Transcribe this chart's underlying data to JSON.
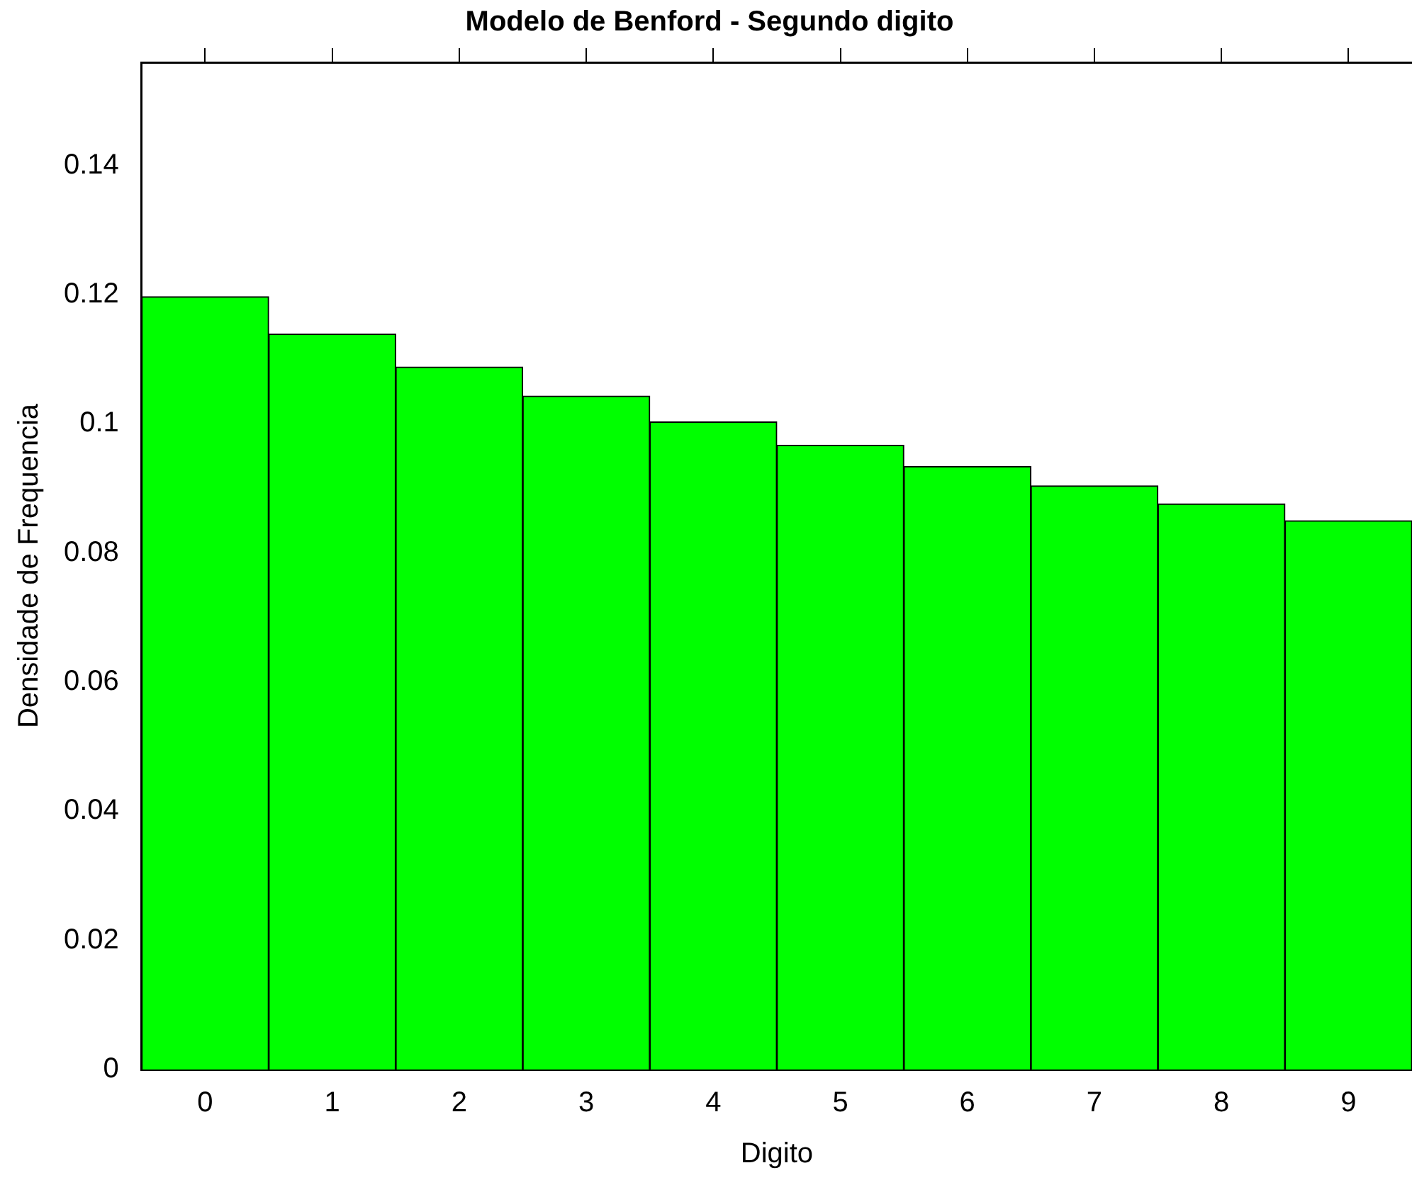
{
  "chart_data": {
    "type": "bar",
    "title": "Modelo de Benford - Segundo digito",
    "xlabel": "Digito",
    "ylabel": "Densidade de Frequencia",
    "categories": [
      "0",
      "1",
      "2",
      "3",
      "4",
      "5",
      "6",
      "7",
      "8",
      "9"
    ],
    "values": [
      0.1197,
      0.1139,
      0.1088,
      0.1043,
      0.1003,
      0.0967,
      0.0934,
      0.0904,
      0.0876,
      0.085
    ],
    "color": "#00ff00",
    "ylim": [
      0,
      0.156
    ],
    "yticks": [
      0,
      0.02,
      0.04,
      0.06,
      0.08,
      0.1,
      0.12,
      0.14
    ],
    "grid": false,
    "legend": false
  }
}
